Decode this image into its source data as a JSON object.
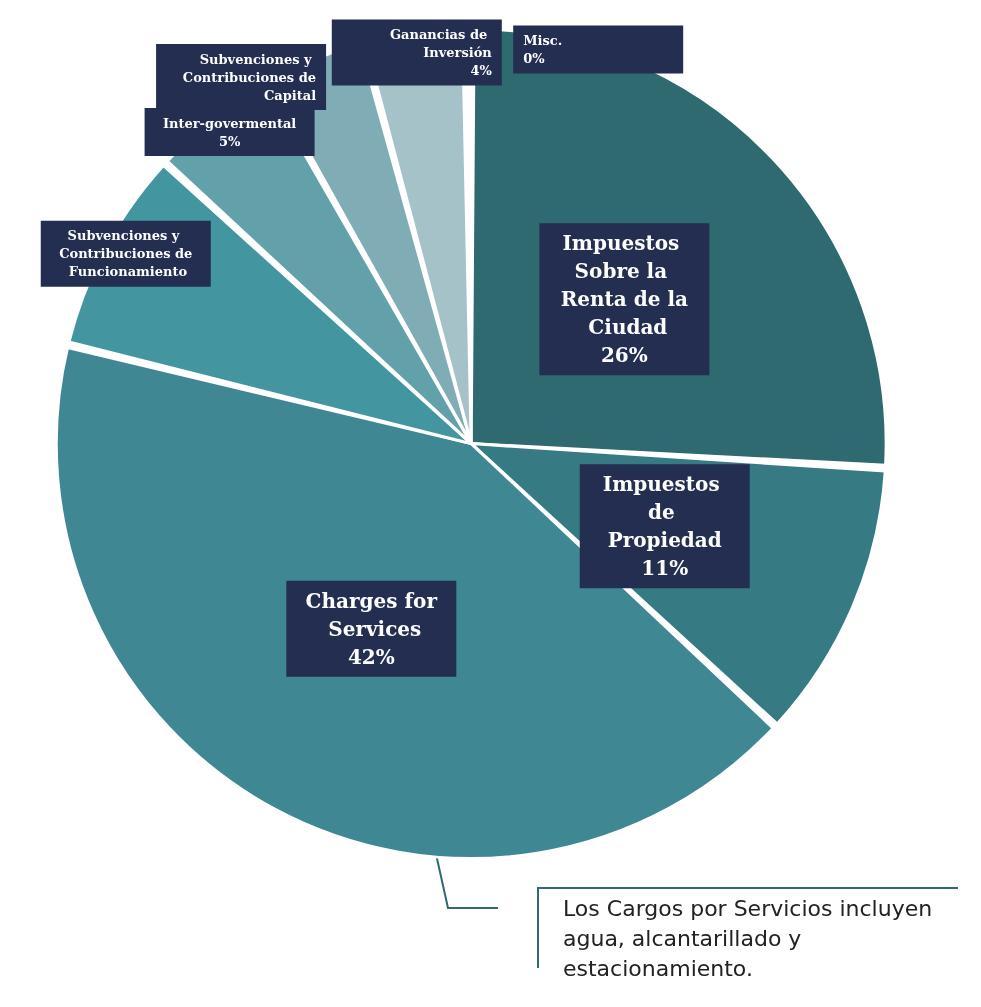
{
  "chart_data": {
    "type": "pie",
    "categories": [
      "Impuestos Sobre la Renta de la Ciudad",
      "Impuestos de Propiedad",
      "Charges for Services",
      "Subvenciones y Contribuciones de Funcionamiento",
      "Inter-govermental",
      "Subvenciones y Contribuciones de Capital",
      "Ganancias de Inversión",
      "Misc."
    ],
    "values": [
      26,
      11,
      42,
      8,
      5,
      4,
      4,
      0
    ],
    "value_labels": [
      "26%",
      "11%",
      "42%",
      null,
      "5%",
      null,
      "4%",
      "0%"
    ],
    "colors": [
      "#2e6a70",
      "#367a83",
      "#3f8792",
      "#4396a0",
      "#62a1aa",
      "#80adb5",
      "#a6c2c9",
      "#c8d8dc"
    ],
    "annotations": [
      "Los Cargos por Servicios incluyen agua, alcantarillado y estacionamiento."
    ],
    "legend": false
  }
}
